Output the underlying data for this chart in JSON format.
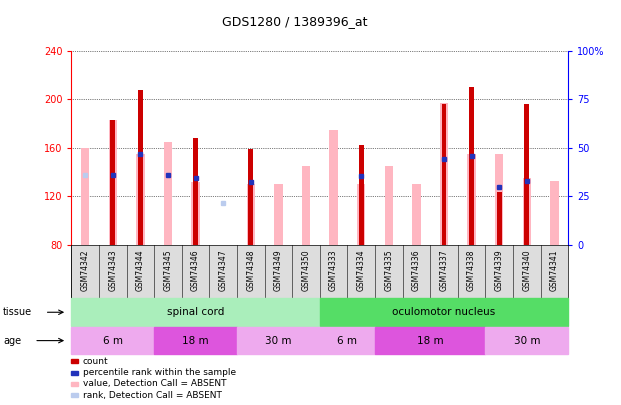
{
  "title": "GDS1280 / 1389396_at",
  "samples": [
    "GSM74342",
    "GSM74343",
    "GSM74344",
    "GSM74345",
    "GSM74346",
    "GSM74347",
    "GSM74348",
    "GSM74349",
    "GSM74350",
    "GSM74333",
    "GSM74334",
    "GSM74335",
    "GSM74336",
    "GSM74337",
    "GSM74338",
    "GSM74339",
    "GSM74340",
    "GSM74341"
  ],
  "red_values": [
    null,
    183,
    208,
    null,
    168,
    null,
    159,
    null,
    null,
    null,
    162,
    null,
    null,
    196,
    210,
    124,
    196,
    null
  ],
  "pink_values": [
    160,
    183,
    155,
    165,
    132,
    80,
    130,
    130,
    145,
    175,
    130,
    145,
    130,
    197,
    155,
    155,
    135,
    133
  ],
  "blue_values": [
    null,
    138,
    155,
    138,
    135,
    null,
    132,
    null,
    null,
    null,
    137,
    null,
    null,
    151,
    153,
    128,
    133,
    null
  ],
  "lblue_values": [
    138,
    null,
    null,
    null,
    null,
    115,
    null,
    null,
    null,
    null,
    null,
    null,
    null,
    null,
    null,
    null,
    null,
    null
  ],
  "ymin": 80,
  "ymax": 240,
  "yticks_left": [
    80,
    120,
    160,
    200,
    240
  ],
  "yticks_right": [
    0,
    25,
    50,
    75,
    100
  ],
  "red_color": "#CC0000",
  "pink_color": "#FFB6C1",
  "blue_color": "#2233BB",
  "lblue_color": "#BBCCEE",
  "tissue_groups": [
    {
      "label": "spinal cord",
      "i0": 0,
      "i1": 9,
      "color": "#AAEEBB"
    },
    {
      "label": "oculomotor nucleus",
      "i0": 9,
      "i1": 18,
      "color": "#55DD66"
    }
  ],
  "age_groups": [
    {
      "label": "6 m",
      "i0": 0,
      "i1": 3,
      "color": "#EEAAEE"
    },
    {
      "label": "18 m",
      "i0": 3,
      "i1": 6,
      "color": "#DD55DD"
    },
    {
      "label": "30 m",
      "i0": 6,
      "i1": 9,
      "color": "#EEAAEE"
    },
    {
      "label": "6 m",
      "i0": 9,
      "i1": 11,
      "color": "#EEAAEE"
    },
    {
      "label": "18 m",
      "i0": 11,
      "i1": 15,
      "color": "#DD55DD"
    },
    {
      "label": "30 m",
      "i0": 15,
      "i1": 18,
      "color": "#EEAAEE"
    }
  ],
  "legend": [
    {
      "label": "count",
      "color": "#CC0000"
    },
    {
      "label": "percentile rank within the sample",
      "color": "#2233BB"
    },
    {
      "label": "value, Detection Call = ABSENT",
      "color": "#FFB6C1"
    },
    {
      "label": "rank, Detection Call = ABSENT",
      "color": "#BBCCEE"
    }
  ]
}
